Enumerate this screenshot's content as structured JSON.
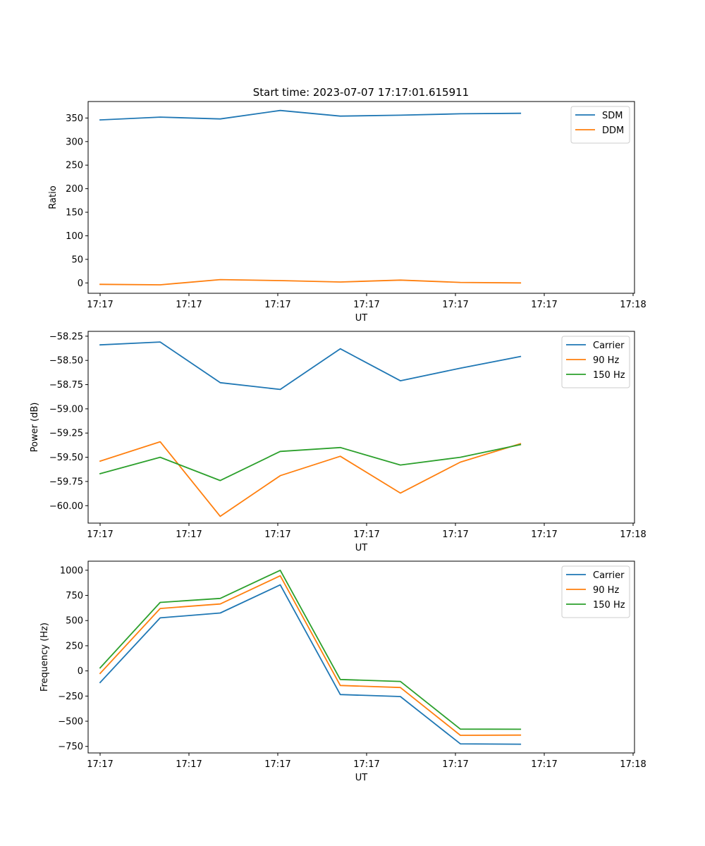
{
  "figure_title": "Start time: 2023-07-07 17:17:01.615911",
  "chart_data": [
    {
      "type": "line",
      "xlabel": "UT",
      "ylabel": "Ratio",
      "x_tick_labels": [
        "17:17",
        "17:17",
        "17:17",
        "17:17",
        "17:17",
        "17:17",
        "17:18"
      ],
      "xlim": [
        -0.2,
        8.9
      ],
      "ylim": [
        -22,
        385
      ],
      "y_ticks": [
        0,
        50,
        100,
        150,
        200,
        250,
        300,
        350
      ],
      "y_tick_labels": [
        "0",
        "50",
        "100",
        "150",
        "200",
        "250",
        "300",
        "350"
      ],
      "legend_position": "top-right",
      "x": [
        0,
        1,
        2,
        3,
        4,
        5,
        6,
        7
      ],
      "series": [
        {
          "name": "SDM",
          "color": "#1f77b4",
          "values": [
            346,
            352,
            348,
            366,
            354,
            356,
            359,
            360
          ]
        },
        {
          "name": "DDM",
          "color": "#ff7f0e",
          "values": [
            -3,
            -4,
            7,
            5,
            2,
            6,
            1,
            0
          ]
        }
      ]
    },
    {
      "type": "line",
      "xlabel": "UT",
      "ylabel": "Power (dB)",
      "x_tick_labels": [
        "17:17",
        "17:17",
        "17:17",
        "17:17",
        "17:17",
        "17:17",
        "17:18"
      ],
      "xlim": [
        -0.2,
        8.9
      ],
      "ylim": [
        -60.18,
        -58.2
      ],
      "y_ticks": [
        -60.0,
        -59.75,
        -59.5,
        -59.25,
        -59.0,
        -58.75,
        -58.5,
        -58.25
      ],
      "y_tick_labels": [
        "−60.00",
        "−59.75",
        "−59.50",
        "−59.25",
        "−59.00",
        "−58.75",
        "−58.50",
        "−58.25"
      ],
      "legend_position": "top-right",
      "x": [
        0,
        1,
        2,
        3,
        4,
        5,
        6,
        7
      ],
      "series": [
        {
          "name": "Carrier",
          "color": "#1f77b4",
          "values": [
            -58.34,
            -58.31,
            -58.73,
            -58.8,
            -58.38,
            -58.71,
            -58.58,
            -58.46
          ]
        },
        {
          "name": "90 Hz",
          "color": "#ff7f0e",
          "values": [
            -59.54,
            -59.34,
            -60.11,
            -59.69,
            -59.49,
            -59.87,
            -59.55,
            -59.36
          ]
        },
        {
          "name": "150 Hz",
          "color": "#2ca02c",
          "values": [
            -59.67,
            -59.5,
            -59.74,
            -59.44,
            -59.4,
            -59.58,
            -59.5,
            -59.37
          ]
        }
      ]
    },
    {
      "type": "line",
      "xlabel": "UT",
      "ylabel": "Frequency (Hz)",
      "x_tick_labels": [
        "17:17",
        "17:17",
        "17:17",
        "17:17",
        "17:17",
        "17:17",
        "17:18"
      ],
      "xlim": [
        -0.2,
        8.9
      ],
      "ylim": [
        -815,
        1090
      ],
      "y_ticks": [
        -750,
        -500,
        -250,
        0,
        250,
        500,
        750,
        1000
      ],
      "y_tick_labels": [
        "−750",
        "−500",
        "−250",
        "0",
        "250",
        "500",
        "750",
        "1000"
      ],
      "legend_position": "top-right",
      "x": [
        0,
        1,
        2,
        3,
        4,
        5,
        6,
        7
      ],
      "series": [
        {
          "name": "Carrier",
          "color": "#1f77b4",
          "values": [
            -115,
            527,
            575,
            855,
            -235,
            -255,
            -725,
            -728
          ]
        },
        {
          "name": "90 Hz",
          "color": "#ff7f0e",
          "values": [
            -25,
            620,
            665,
            945,
            -145,
            -165,
            -640,
            -638
          ]
        },
        {
          "name": "150 Hz",
          "color": "#2ca02c",
          "values": [
            30,
            680,
            720,
            1000,
            -85,
            -105,
            -578,
            -580
          ]
        }
      ]
    }
  ]
}
